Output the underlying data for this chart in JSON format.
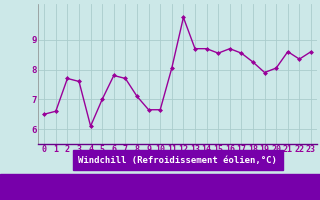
{
  "x": [
    0,
    1,
    2,
    3,
    4,
    5,
    6,
    7,
    8,
    9,
    10,
    11,
    12,
    13,
    14,
    15,
    16,
    17,
    18,
    19,
    20,
    21,
    22,
    23
  ],
  "y": [
    6.5,
    6.6,
    7.7,
    7.6,
    6.1,
    7.0,
    7.8,
    7.7,
    7.1,
    6.65,
    6.65,
    8.05,
    9.75,
    8.7,
    8.7,
    8.55,
    8.7,
    8.55,
    8.25,
    7.9,
    8.05,
    8.6,
    8.35,
    8.6
  ],
  "line_color": "#990099",
  "marker": "D",
  "marker_size": 2.0,
  "bg_color": "#cce8e8",
  "grid_color": "#aacccc",
  "xlabel": "Windchill (Refroidissement éolien,°C)",
  "xlabel_color": "#990099",
  "xlabel_bg": "#8800aa",
  "tick_color": "#990099",
  "ylim": [
    5.5,
    10.2
  ],
  "xlim": [
    -0.5,
    23.5
  ],
  "yticks": [
    6,
    7,
    8,
    9
  ],
  "label_fontsize": 6.5,
  "tick_fontsize": 6.0,
  "linewidth": 1.0
}
